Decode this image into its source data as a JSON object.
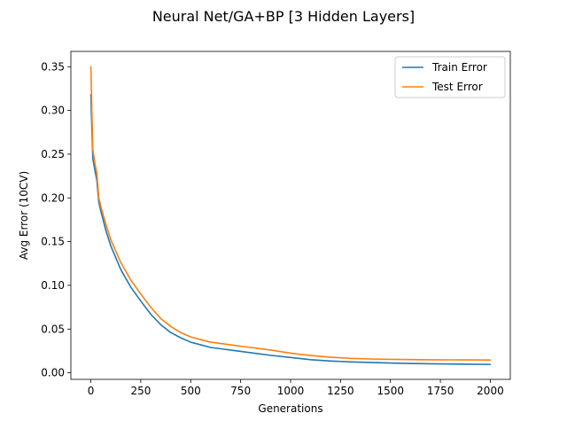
{
  "chart_data": {
    "type": "line",
    "title": "Neural Net/GA+BP [3 Hidden Layers]",
    "xlabel": "Generations",
    "ylabel": "Avg Error (10CV)",
    "xlim": [
      -100,
      2100
    ],
    "ylim": [
      -0.0075,
      0.3675
    ],
    "xticks": [
      0,
      250,
      500,
      750,
      1000,
      1250,
      1500,
      1750,
      2000
    ],
    "xtick_labels": [
      "0",
      "250",
      "500",
      "750",
      "1000",
      "1250",
      "1500",
      "1750",
      "2000"
    ],
    "yticks": [
      0.0,
      0.05,
      0.1,
      0.15,
      0.2,
      0.25,
      0.3,
      0.35
    ],
    "ytick_labels": [
      "0.00",
      "0.05",
      "0.10",
      "0.15",
      "0.20",
      "0.25",
      "0.30",
      "0.35"
    ],
    "grid": false,
    "legend": {
      "position": "top-right"
    },
    "series": [
      {
        "name": "Train Error",
        "color": "#1f77b4",
        "x": [
          0,
          5,
          10,
          20,
          30,
          40,
          50,
          75,
          100,
          150,
          200,
          250,
          300,
          350,
          400,
          450,
          500,
          600,
          700,
          800,
          900,
          1000,
          1100,
          1200,
          1300,
          1400,
          1500,
          1600,
          1700,
          1800,
          1900,
          2000
        ],
        "y": [
          0.318,
          0.28,
          0.245,
          0.232,
          0.22,
          0.195,
          0.185,
          0.163,
          0.145,
          0.118,
          0.098,
          0.082,
          0.067,
          0.055,
          0.046,
          0.04,
          0.035,
          0.029,
          0.026,
          0.023,
          0.02,
          0.0175,
          0.015,
          0.0135,
          0.0125,
          0.0118,
          0.0112,
          0.0107,
          0.0103,
          0.01,
          0.0098,
          0.0096
        ]
      },
      {
        "name": "Test Error",
        "color": "#ff7f0e",
        "x": [
          0,
          5,
          10,
          20,
          30,
          40,
          50,
          75,
          100,
          150,
          200,
          250,
          300,
          350,
          400,
          450,
          500,
          600,
          700,
          800,
          900,
          1000,
          1100,
          1200,
          1300,
          1400,
          1500,
          1600,
          1700,
          1800,
          1900,
          2000
        ],
        "y": [
          0.35,
          0.3,
          0.255,
          0.24,
          0.228,
          0.2,
          0.19,
          0.17,
          0.152,
          0.126,
          0.106,
          0.09,
          0.075,
          0.062,
          0.053,
          0.046,
          0.041,
          0.035,
          0.032,
          0.029,
          0.026,
          0.0225,
          0.0198,
          0.0178,
          0.0165,
          0.0158,
          0.0154,
          0.0151,
          0.0149,
          0.0148,
          0.0147,
          0.0146
        ]
      }
    ]
  }
}
